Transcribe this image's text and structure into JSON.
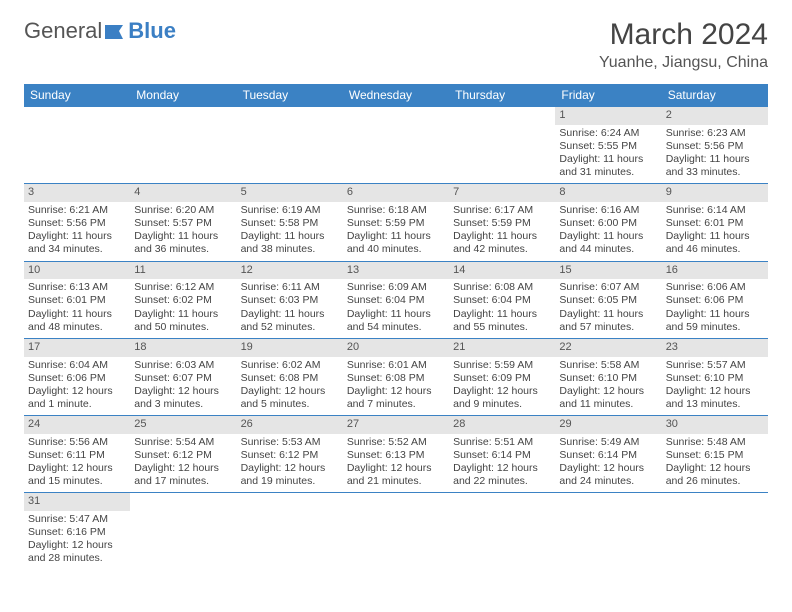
{
  "logo": {
    "part1": "General",
    "part2": "Blue"
  },
  "title": "March 2024",
  "location": "Yuanhe, Jiangsu, China",
  "colors": {
    "header_bg": "#3b82c4",
    "daynum_bg": "#e5e5e5",
    "border": "#3b82c4",
    "logo_blue": "#3b7fc4"
  },
  "weekdays": [
    "Sunday",
    "Monday",
    "Tuesday",
    "Wednesday",
    "Thursday",
    "Friday",
    "Saturday"
  ],
  "weeks": [
    [
      null,
      null,
      null,
      null,
      null,
      {
        "n": "1",
        "sr": "Sunrise: 6:24 AM",
        "ss": "Sunset: 5:55 PM",
        "dl": "Daylight: 11 hours and 31 minutes."
      },
      {
        "n": "2",
        "sr": "Sunrise: 6:23 AM",
        "ss": "Sunset: 5:56 PM",
        "dl": "Daylight: 11 hours and 33 minutes."
      }
    ],
    [
      {
        "n": "3",
        "sr": "Sunrise: 6:21 AM",
        "ss": "Sunset: 5:56 PM",
        "dl": "Daylight: 11 hours and 34 minutes."
      },
      {
        "n": "4",
        "sr": "Sunrise: 6:20 AM",
        "ss": "Sunset: 5:57 PM",
        "dl": "Daylight: 11 hours and 36 minutes."
      },
      {
        "n": "5",
        "sr": "Sunrise: 6:19 AM",
        "ss": "Sunset: 5:58 PM",
        "dl": "Daylight: 11 hours and 38 minutes."
      },
      {
        "n": "6",
        "sr": "Sunrise: 6:18 AM",
        "ss": "Sunset: 5:59 PM",
        "dl": "Daylight: 11 hours and 40 minutes."
      },
      {
        "n": "7",
        "sr": "Sunrise: 6:17 AM",
        "ss": "Sunset: 5:59 PM",
        "dl": "Daylight: 11 hours and 42 minutes."
      },
      {
        "n": "8",
        "sr": "Sunrise: 6:16 AM",
        "ss": "Sunset: 6:00 PM",
        "dl": "Daylight: 11 hours and 44 minutes."
      },
      {
        "n": "9",
        "sr": "Sunrise: 6:14 AM",
        "ss": "Sunset: 6:01 PM",
        "dl": "Daylight: 11 hours and 46 minutes."
      }
    ],
    [
      {
        "n": "10",
        "sr": "Sunrise: 6:13 AM",
        "ss": "Sunset: 6:01 PM",
        "dl": "Daylight: 11 hours and 48 minutes."
      },
      {
        "n": "11",
        "sr": "Sunrise: 6:12 AM",
        "ss": "Sunset: 6:02 PM",
        "dl": "Daylight: 11 hours and 50 minutes."
      },
      {
        "n": "12",
        "sr": "Sunrise: 6:11 AM",
        "ss": "Sunset: 6:03 PM",
        "dl": "Daylight: 11 hours and 52 minutes."
      },
      {
        "n": "13",
        "sr": "Sunrise: 6:09 AM",
        "ss": "Sunset: 6:04 PM",
        "dl": "Daylight: 11 hours and 54 minutes."
      },
      {
        "n": "14",
        "sr": "Sunrise: 6:08 AM",
        "ss": "Sunset: 6:04 PM",
        "dl": "Daylight: 11 hours and 55 minutes."
      },
      {
        "n": "15",
        "sr": "Sunrise: 6:07 AM",
        "ss": "Sunset: 6:05 PM",
        "dl": "Daylight: 11 hours and 57 minutes."
      },
      {
        "n": "16",
        "sr": "Sunrise: 6:06 AM",
        "ss": "Sunset: 6:06 PM",
        "dl": "Daylight: 11 hours and 59 minutes."
      }
    ],
    [
      {
        "n": "17",
        "sr": "Sunrise: 6:04 AM",
        "ss": "Sunset: 6:06 PM",
        "dl": "Daylight: 12 hours and 1 minute."
      },
      {
        "n": "18",
        "sr": "Sunrise: 6:03 AM",
        "ss": "Sunset: 6:07 PM",
        "dl": "Daylight: 12 hours and 3 minutes."
      },
      {
        "n": "19",
        "sr": "Sunrise: 6:02 AM",
        "ss": "Sunset: 6:08 PM",
        "dl": "Daylight: 12 hours and 5 minutes."
      },
      {
        "n": "20",
        "sr": "Sunrise: 6:01 AM",
        "ss": "Sunset: 6:08 PM",
        "dl": "Daylight: 12 hours and 7 minutes."
      },
      {
        "n": "21",
        "sr": "Sunrise: 5:59 AM",
        "ss": "Sunset: 6:09 PM",
        "dl": "Daylight: 12 hours and 9 minutes."
      },
      {
        "n": "22",
        "sr": "Sunrise: 5:58 AM",
        "ss": "Sunset: 6:10 PM",
        "dl": "Daylight: 12 hours and 11 minutes."
      },
      {
        "n": "23",
        "sr": "Sunrise: 5:57 AM",
        "ss": "Sunset: 6:10 PM",
        "dl": "Daylight: 12 hours and 13 minutes."
      }
    ],
    [
      {
        "n": "24",
        "sr": "Sunrise: 5:56 AM",
        "ss": "Sunset: 6:11 PM",
        "dl": "Daylight: 12 hours and 15 minutes."
      },
      {
        "n": "25",
        "sr": "Sunrise: 5:54 AM",
        "ss": "Sunset: 6:12 PM",
        "dl": "Daylight: 12 hours and 17 minutes."
      },
      {
        "n": "26",
        "sr": "Sunrise: 5:53 AM",
        "ss": "Sunset: 6:12 PM",
        "dl": "Daylight: 12 hours and 19 minutes."
      },
      {
        "n": "27",
        "sr": "Sunrise: 5:52 AM",
        "ss": "Sunset: 6:13 PM",
        "dl": "Daylight: 12 hours and 21 minutes."
      },
      {
        "n": "28",
        "sr": "Sunrise: 5:51 AM",
        "ss": "Sunset: 6:14 PM",
        "dl": "Daylight: 12 hours and 22 minutes."
      },
      {
        "n": "29",
        "sr": "Sunrise: 5:49 AM",
        "ss": "Sunset: 6:14 PM",
        "dl": "Daylight: 12 hours and 24 minutes."
      },
      {
        "n": "30",
        "sr": "Sunrise: 5:48 AM",
        "ss": "Sunset: 6:15 PM",
        "dl": "Daylight: 12 hours and 26 minutes."
      }
    ],
    [
      {
        "n": "31",
        "sr": "Sunrise: 5:47 AM",
        "ss": "Sunset: 6:16 PM",
        "dl": "Daylight: 12 hours and 28 minutes."
      },
      null,
      null,
      null,
      null,
      null,
      null
    ]
  ]
}
